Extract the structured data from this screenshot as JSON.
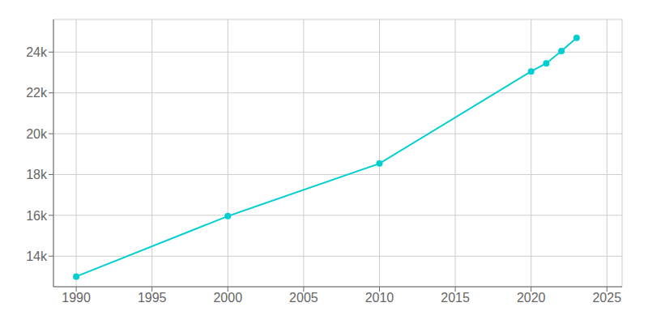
{
  "chart_data": {
    "type": "line",
    "x": [
      1990,
      2000,
      2010,
      2020,
      2021,
      2022,
      2023
    ],
    "values": [
      13000,
      15960,
      18540,
      23050,
      23450,
      24050,
      24700
    ],
    "color": "#00CED1",
    "marker": "circle",
    "xlim": [
      1988.5,
      2026
    ],
    "ylim": [
      12500,
      25600
    ],
    "xticks": [
      1990,
      1995,
      2000,
      2005,
      2010,
      2015,
      2020,
      2025
    ],
    "yticks": [
      {
        "value": 14000,
        "label": "14k"
      },
      {
        "value": 16000,
        "label": "16k"
      },
      {
        "value": 18000,
        "label": "18k"
      },
      {
        "value": 20000,
        "label": "20k"
      },
      {
        "value": 22000,
        "label": "22k"
      },
      {
        "value": 24000,
        "label": "24k"
      }
    ],
    "grid": true
  }
}
